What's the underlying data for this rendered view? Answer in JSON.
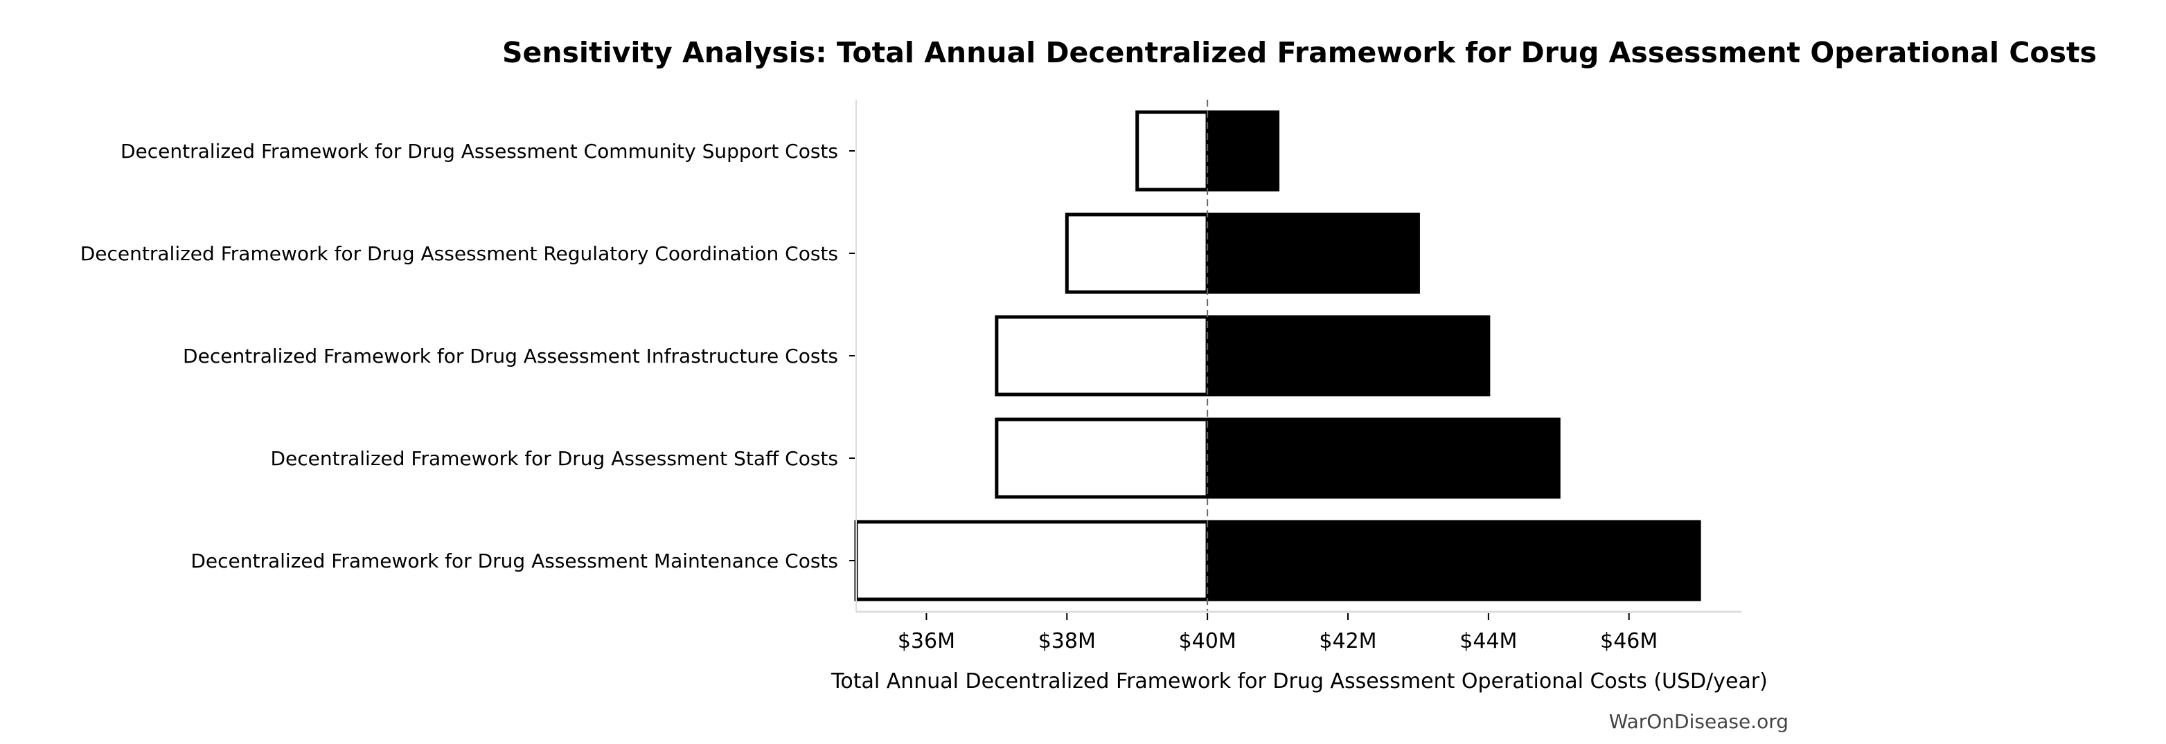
{
  "chart_data": {
    "type": "bar",
    "orientation": "horizontal",
    "subtype": "tornado",
    "title": "Sensitivity Analysis: Total Annual Decentralized Framework for Drug Assessment Operational Costs",
    "xlabel": "Total Annual Decentralized Framework for Drug Assessment Operational Costs (USD/year)",
    "ylabel": "",
    "baseline": 40,
    "xlim": [
      35,
      47.6
    ],
    "xticks": [
      36,
      38,
      40,
      42,
      44,
      46
    ],
    "xtick_labels": [
      "$36M",
      "$38M",
      "$40M",
      "$42M",
      "$44M",
      "$46M"
    ],
    "grid": false,
    "categories": [
      "Decentralized Framework for Drug Assessment Community Support Costs",
      "Decentralized Framework for Drug Assessment Regulatory Coordination Costs",
      "Decentralized Framework for Drug Assessment Infrastructure Costs",
      "Decentralized Framework for Drug Assessment Staff Costs",
      "Decentralized Framework for Drug Assessment Maintenance Costs"
    ],
    "series": [
      {
        "values": [
          39,
          38,
          37,
          37,
          35
        ],
        "color": "#ffffff",
        "edge": "#000000"
      },
      {
        "values": [
          41,
          43,
          44,
          45,
          47
        ],
        "color": "#000000",
        "edge": "#000000"
      }
    ],
    "watermark": "WarOnDisease.org"
  }
}
